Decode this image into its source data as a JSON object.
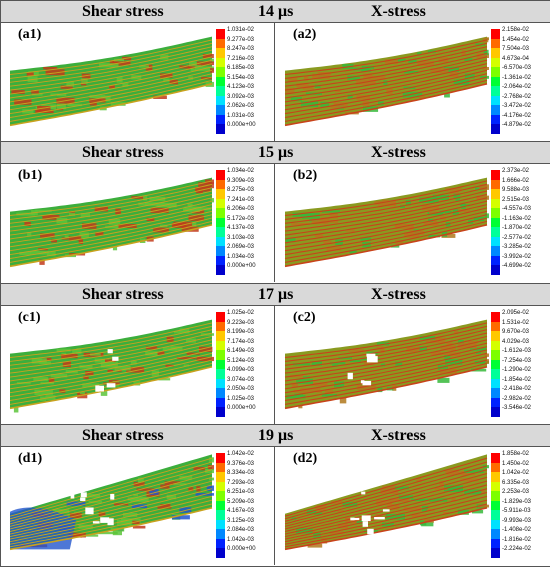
{
  "rows": [
    {
      "left_title": "Shear stress",
      "time": "14 μs",
      "right_title": "X-stress",
      "left_label": "(a1)",
      "right_label": "(a2)",
      "left_ticks": [
        "1.031e-02",
        "9.277e-03",
        "8.247e-03",
        "7.216e-03",
        "6.185e-03",
        "5.154e-03",
        "4.123e-03",
        "3.092e-03",
        "2.062e-03",
        "1.031e-03",
        "0.000e+00"
      ],
      "right_ticks": [
        "2.158e-02",
        "1.454e-02",
        "7.504e-03",
        "4.673e-04",
        "-6.570e-03",
        "-1.361e-02",
        "-2.064e-02",
        "-2.768e-02",
        "-3.472e-02",
        "-4.176e-02",
        "-4.879e-02"
      ]
    },
    {
      "left_title": "Shear stress",
      "time": "15 μs",
      "right_title": "X-stress",
      "left_label": "(b1)",
      "right_label": "(b2)",
      "left_ticks": [
        "1.034e-02",
        "9.309e-03",
        "8.275e-03",
        "7.241e-03",
        "6.206e-03",
        "5.172e-03",
        "4.137e-03",
        "3.103e-03",
        "2.069e-03",
        "1.034e-03",
        "0.000e+00"
      ],
      "right_ticks": [
        "2.373e-02",
        "1.666e-02",
        "9.588e-03",
        "2.515e-03",
        "-4.557e-03",
        "-1.163e-02",
        "-1.870e-02",
        "-2.577e-02",
        "-3.285e-02",
        "-3.992e-02",
        "-4.699e-02"
      ]
    },
    {
      "left_title": "Shear stress",
      "time": "17 μs",
      "right_title": "X-stress",
      "left_label": "(c1)",
      "right_label": "(c2)",
      "left_ticks": [
        "1.025e-02",
        "9.223e-03",
        "8.199e-03",
        "7.174e-03",
        "6.149e-03",
        "5.124e-03",
        "4.099e-03",
        "3.074e-03",
        "2.050e-03",
        "1.025e-03",
        "0.000e+00"
      ],
      "right_ticks": [
        "2.095e-02",
        "1.531e-02",
        "9.670e-03",
        "4.029e-03",
        "-1.612e-03",
        "-7.254e-03",
        "-1.290e-02",
        "-1.854e-02",
        "-2.418e-02",
        "-2.982e-02",
        "-3.546e-02"
      ]
    },
    {
      "left_title": "Shear stress",
      "time": "19 μs",
      "right_title": "X-stress",
      "left_label": "(d1)",
      "right_label": "(d2)",
      "left_ticks": [
        "1.042e-02",
        "9.376e-03",
        "8.334e-03",
        "7.293e-03",
        "6.251e-03",
        "5.209e-03",
        "4.167e-03",
        "3.125e-03",
        "2.084e-03",
        "1.042e-03",
        "0.000e+00"
      ],
      "right_ticks": [
        "1.858e-02",
        "1.450e-02",
        "1.042e-02",
        "6.335e-03",
        "2.253e-03",
        "-1.829e-03",
        "-5.911e-03",
        "-9.993e-03",
        "-1.408e-02",
        "-1.816e-02",
        "-2.224e-02"
      ]
    }
  ],
  "colors": {
    "colormap": [
      "#ff0000",
      "#ff6a00",
      "#ffc800",
      "#d4ff00",
      "#7dff00",
      "#00ff33",
      "#00ff99",
      "#00e1ff",
      "#0088ff",
      "#0022ff",
      "#0000cc"
    ],
    "shear_fill": "#3cae3c",
    "shear_hot": "#c23a1a",
    "shear_cold": "#2255cc",
    "xstress_fill": "#8a9a20",
    "xstress_hot": "#c8431a",
    "xstress_green": "#36b83a",
    "header_bg": "#d9d9d9"
  }
}
